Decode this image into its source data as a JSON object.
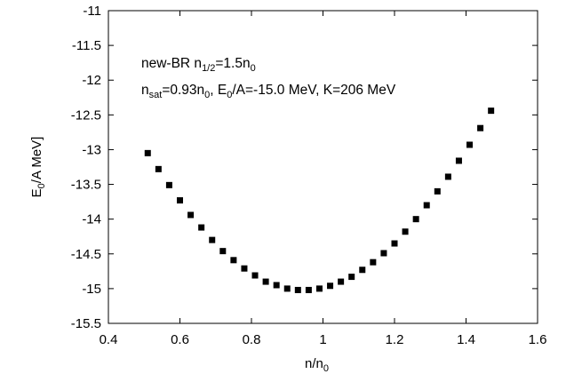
{
  "chart_data": {
    "type": "scatter",
    "xlabel": {
      "base": "n/n",
      "sub": "0"
    },
    "ylabel": {
      "pre": "E",
      "sub": "0",
      "post": "/A  MeV]"
    },
    "xlim": [
      0.4,
      1.6
    ],
    "ylim": [
      -15.5,
      -11
    ],
    "xticks": [
      0.4,
      0.6,
      0.8,
      1,
      1.2,
      1.4,
      1.6
    ],
    "xtick_labels": [
      "0.4",
      "0.6",
      "0.8",
      "1",
      "1.2",
      "1.4",
      "1.6"
    ],
    "yticks": [
      -15.5,
      -15,
      -14.5,
      -14,
      -13.5,
      -13,
      -12.5,
      -12,
      -11.5,
      -11
    ],
    "ytick_labels": [
      "-15.5",
      "-15",
      "-14.5",
      "-14",
      "-13.5",
      "-13",
      "-12.5",
      "-12",
      "-11.5",
      "-11"
    ],
    "grid": false,
    "marker": "square",
    "marker_color": "#000000",
    "annotations": {
      "line1": [
        {
          "t": "new-BR n"
        },
        {
          "t": "1/2",
          "sub": true
        },
        {
          "t": "=1.5n"
        },
        {
          "t": "0",
          "sub": true
        }
      ],
      "line2": [
        {
          "t": "n"
        },
        {
          "t": "sat",
          "sub": true
        },
        {
          "t": "=0.93n"
        },
        {
          "t": "0",
          "sub": true
        },
        {
          "t": ", E"
        },
        {
          "t": "0",
          "sub": true
        },
        {
          "t": "/A=-15.0 MeV, K=206 MeV"
        }
      ]
    },
    "x": [
      0.51,
      0.54,
      0.57,
      0.6,
      0.63,
      0.66,
      0.69,
      0.72,
      0.75,
      0.78,
      0.81,
      0.84,
      0.87,
      0.9,
      0.93,
      0.96,
      0.99,
      1.02,
      1.05,
      1.08,
      1.11,
      1.14,
      1.17,
      1.2,
      1.23,
      1.26,
      1.29,
      1.32,
      1.35,
      1.38,
      1.41,
      1.44,
      1.47
    ],
    "y": [
      -13.05,
      -13.28,
      -13.51,
      -13.73,
      -13.94,
      -14.12,
      -14.3,
      -14.46,
      -14.59,
      -14.71,
      -14.81,
      -14.9,
      -14.95,
      -15.0,
      -15.02,
      -15.02,
      -15.0,
      -14.96,
      -14.9,
      -14.83,
      -14.73,
      -14.62,
      -14.49,
      -14.35,
      -14.18,
      -14.0,
      -13.8,
      -13.6,
      -13.39,
      -13.16,
      -12.93,
      -12.69,
      -12.44
    ]
  }
}
